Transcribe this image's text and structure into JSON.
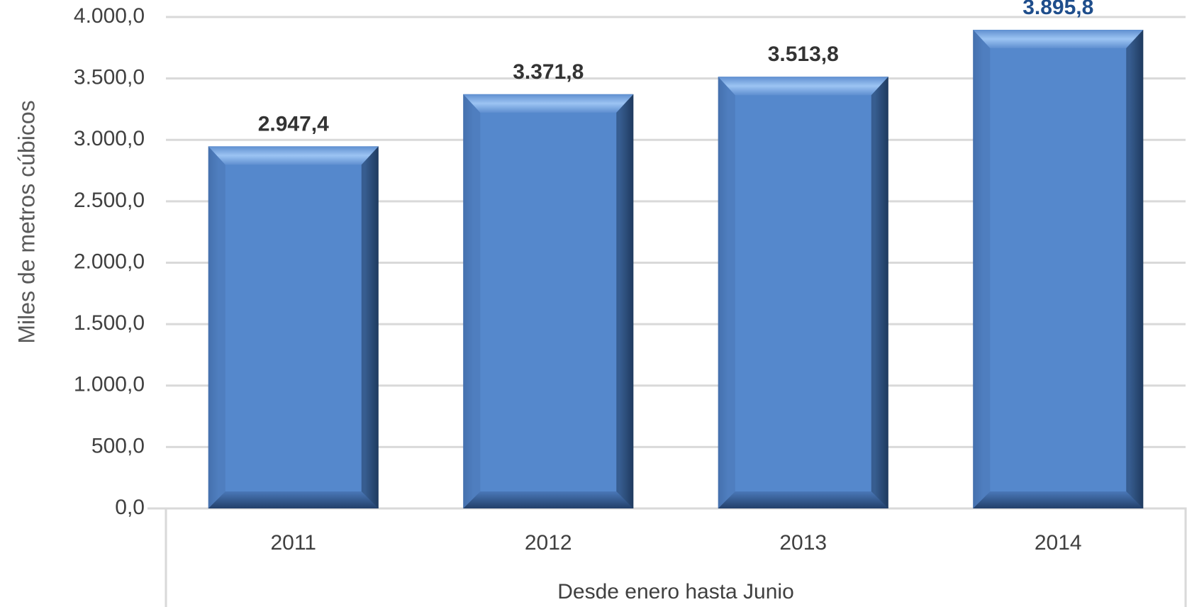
{
  "chart_data": {
    "type": "bar",
    "categories": [
      "2011",
      "2012",
      "2013",
      "2014"
    ],
    "values": [
      2947.4,
      3371.8,
      3513.8,
      3895.8
    ],
    "data_labels": [
      "2.947,4",
      "3.371,8",
      "3.513,8",
      "3.895,8"
    ],
    "ylabel": "Miles de metros cúbicos",
    "xlabel": "Desde enero hasta Junio",
    "ylim": [
      0,
      4000
    ],
    "ytick_values": [
      0,
      500,
      1000,
      1500,
      2000,
      2500,
      3000,
      3500,
      4000
    ],
    "yticks": [
      "0,0",
      "500,0",
      "1.000,0",
      "1.500,0",
      "2.000,0",
      "2.500,0",
      "3.000,0",
      "3.500,0",
      "4.000,0"
    ],
    "grid": true,
    "legend": "none",
    "colors": {
      "bar": "#5588cc",
      "bar_highlight": "#8fbaf0",
      "bar_dark": "#1f3a5f",
      "grid": "#d9d9d9",
      "data_label": "#333333",
      "data_label_emphasis": "#1f4e8c"
    }
  }
}
